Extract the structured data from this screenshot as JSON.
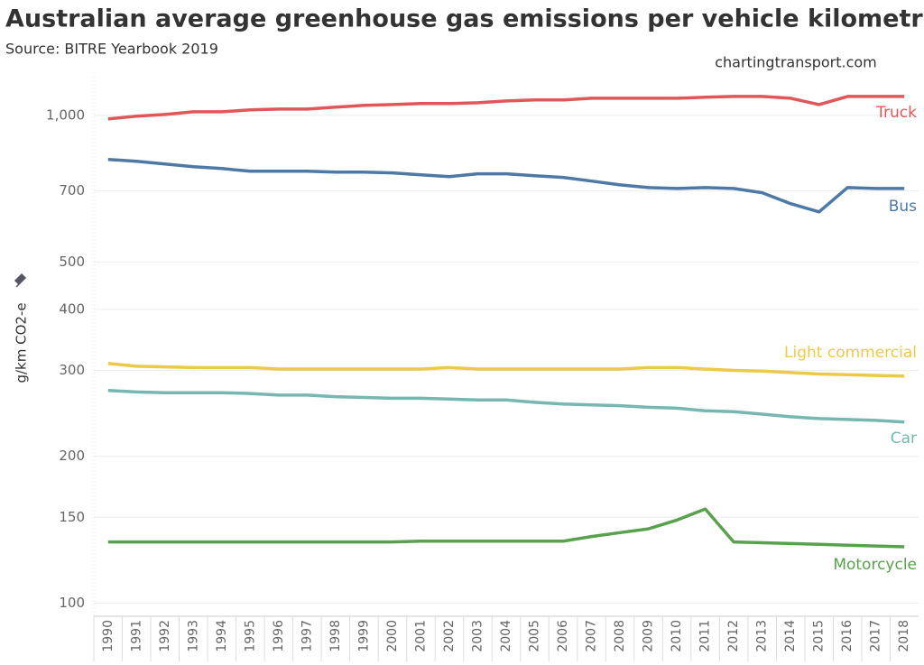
{
  "chart_data": {
    "type": "line",
    "title": "Australian average greenhouse gas emissions per vehicle kilometre",
    "subtitle": "Source: BITRE Yearbook 2019",
    "annotation": "chartingtransport.com",
    "y_label": "g/km CO2-e",
    "log_scale": true,
    "grid": true,
    "categories": [
      "1990",
      "1991",
      "1992",
      "1993",
      "1994",
      "1995",
      "1996",
      "1997",
      "1998",
      "1999",
      "2000",
      "2001",
      "2002",
      "2003",
      "2004",
      "2005",
      "2006",
      "2007",
      "2008",
      "2009",
      "2010",
      "2011",
      "2012",
      "2013",
      "2014",
      "2015",
      "2016",
      "2017",
      "2018"
    ],
    "ylim": [
      94,
      1200
    ],
    "yticks": [
      100,
      150,
      200,
      300,
      400,
      500,
      700,
      {
        "value": 1000,
        "label": "1,000"
      }
    ],
    "series": [
      {
        "name": "Truck",
        "color": "#e15759",
        "values": [
          983,
          996,
          1004,
          1017,
          1017,
          1026,
          1030,
          1030,
          1039,
          1048,
          1052,
          1057,
          1057,
          1061,
          1070,
          1075,
          1075,
          1084,
          1084,
          1084,
          1084,
          1089,
          1093,
          1093,
          1084,
          1052,
          1093,
          1093,
          1093
        ]
      },
      {
        "name": "Bus",
        "color": "#4e79a7",
        "values": [
          812,
          805,
          795,
          785,
          778,
          768,
          768,
          768,
          765,
          765,
          762,
          755,
          749,
          759,
          759,
          752,
          746,
          733,
          720,
          711,
          708,
          711,
          708,
          694,
          659,
          634,
          711,
          708,
          708
        ]
      },
      {
        "name": "Light commercial",
        "color": "#edc948",
        "values": [
          310,
          306,
          305,
          304,
          304,
          304,
          302,
          302,
          302,
          302,
          302,
          302,
          304,
          302,
          302,
          302,
          302,
          302,
          302,
          304,
          304,
          302,
          300,
          299,
          297,
          295,
          294,
          293,
          292
        ]
      },
      {
        "name": "Car",
        "color": "#76b7b2",
        "values": [
          273,
          271,
          270,
          270,
          270,
          269,
          267,
          267,
          265,
          264,
          263,
          263,
          262,
          261,
          261,
          258,
          256,
          255,
          254,
          252,
          251,
          248,
          247,
          244,
          241,
          239,
          238,
          237,
          235
        ]
      },
      {
        "name": "Motorcycle",
        "color": "#59a14f",
        "values": [
          133.5,
          133.5,
          133.5,
          133.5,
          133.5,
          133.5,
          133.5,
          133.5,
          133.5,
          133.5,
          133.5,
          134,
          134,
          134,
          134,
          134,
          134,
          137,
          139.5,
          142,
          148,
          156,
          133.5,
          133,
          132.5,
          132,
          131.5,
          131,
          130.5
        ]
      }
    ]
  }
}
